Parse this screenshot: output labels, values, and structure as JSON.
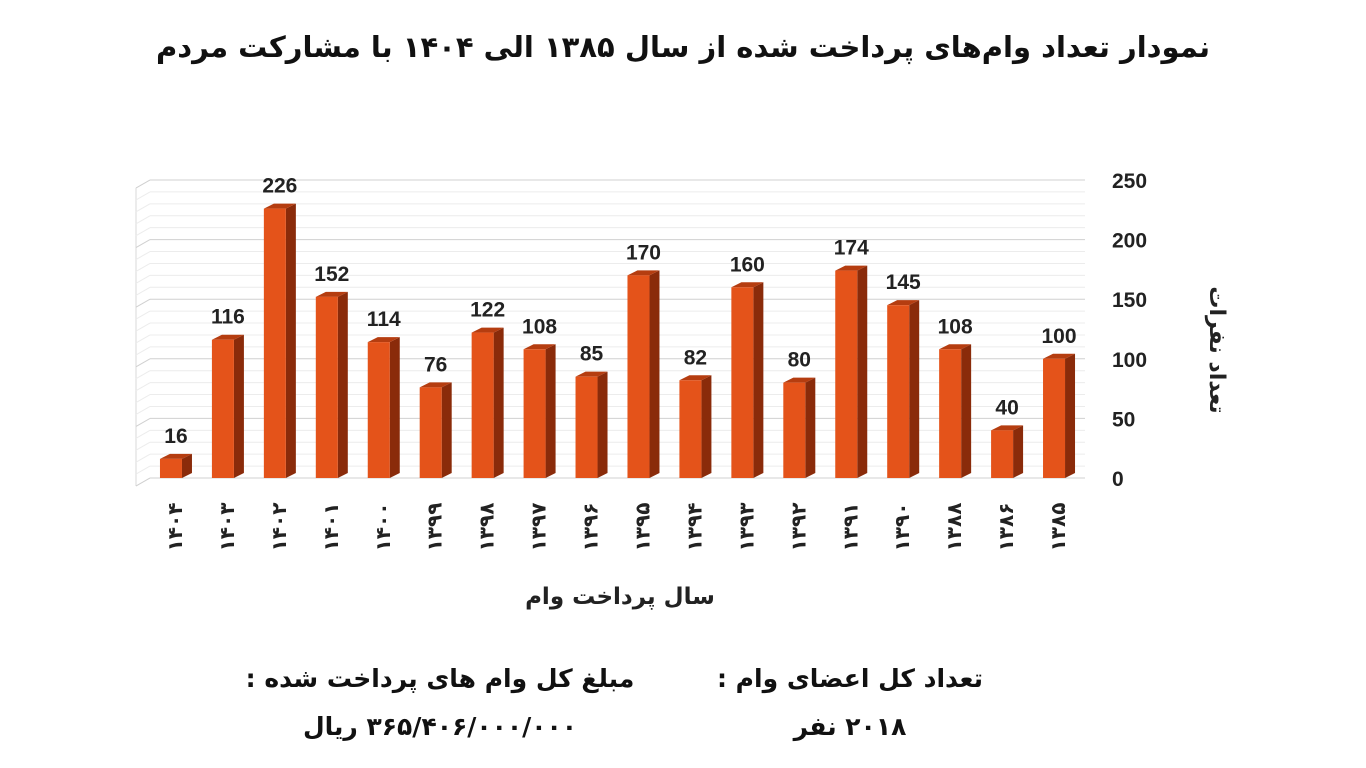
{
  "title": "نمودار تعداد وام‌های پرداخت شده از سال ۱۳۸۵ الی ۱۴۰۴  با مشارکت مردم",
  "chart_data": {
    "type": "bar",
    "title": "نمودار تعداد وام‌های پرداخت شده از سال ۱۳۸۵ الی ۱۴۰۴  با مشارکت مردم",
    "xlabel": "سال پرداخت وام",
    "ylabel": "تعداد نفرات",
    "ylim": [
      0,
      250
    ],
    "yticks": [
      0,
      50,
      100,
      150,
      200,
      250
    ],
    "categories": [
      "۱۴۰۴",
      "۱۴۰۳",
      "۱۴۰۲",
      "۱۴۰۱",
      "۱۴۰۰",
      "۱۳۹۹",
      "۱۳۹۸",
      "۱۳۹۷",
      "۱۳۹۶",
      "۱۳۹۵",
      "۱۳۹۴",
      "۱۳۹۳",
      "۱۳۹۲",
      "۱۳۹۱",
      "۱۳۹۰",
      "۱۳۸۸",
      "۱۳۸۶",
      "۱۳۸۵"
    ],
    "values": [
      16,
      116,
      226,
      152,
      114,
      76,
      122,
      108,
      85,
      170,
      82,
      160,
      80,
      174,
      145,
      108,
      40,
      100
    ],
    "bar_color": "#e4531a",
    "bar_side_color": "#8a2b0a",
    "bar_top_color": "#b53d10",
    "grid": true,
    "y_axis_side": "right"
  },
  "footer": {
    "members_label": "تعداد کل اعضای وام :",
    "members_value": "۲۰۱۸ نفر",
    "amount_label": "مبلغ کل وام های پرداخت شده :",
    "amount_value": "۳۶۵/۴۰۶/۰۰۰/۰۰۰ ریال"
  }
}
